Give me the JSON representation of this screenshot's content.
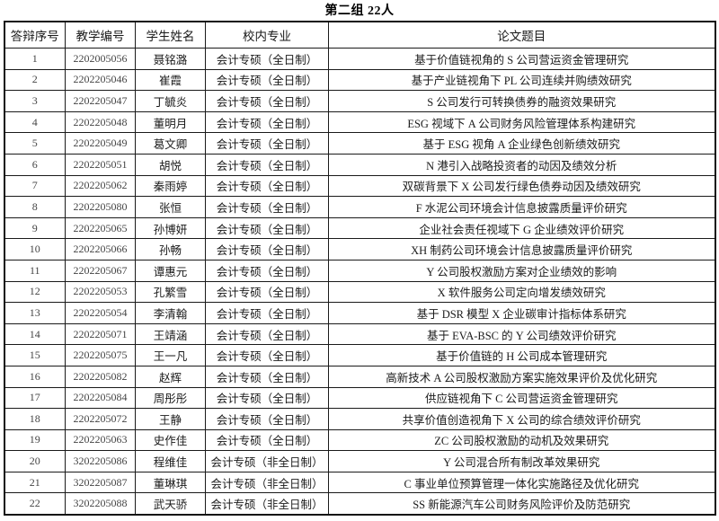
{
  "title": "第二组 22人",
  "table": {
    "headers": [
      "答辩序号",
      "教学编号",
      "学生姓名",
      "校内专业",
      "论文题目"
    ],
    "rows": [
      [
        "1",
        "2202005056",
        "聂铭潞",
        "会计专硕（全日制）",
        "基于价值链视角的 S 公司营运资金管理研究"
      ],
      [
        "2",
        "2202205046",
        "崔霞",
        "会计专硕（全日制）",
        "基于产业链视角下 PL 公司连续并购绩效研究"
      ],
      [
        "3",
        "2202205047",
        "丁毓炎",
        "会计专硕（全日制）",
        "S 公司发行可转换债券的融资效果研究"
      ],
      [
        "4",
        "2202205048",
        "董明月",
        "会计专硕（全日制）",
        "ESG 视域下 A 公司财务风险管理体系构建研究"
      ],
      [
        "5",
        "2202205049",
        "葛文卿",
        "会计专硕（全日制）",
        "基于 ESG 视角 A 企业绿色创新绩效研究"
      ],
      [
        "6",
        "2202205051",
        "胡悦",
        "会计专硕（全日制）",
        "N 港引入战略投资者的动因及绩效分析"
      ],
      [
        "7",
        "2202205062",
        "秦雨婷",
        "会计专硕（全日制）",
        "双碳背景下 X 公司发行绿色债券动因及绩效研究"
      ],
      [
        "8",
        "2202205080",
        "张恒",
        "会计专硕（全日制）",
        "F 水泥公司环境会计信息披露质量评价研究"
      ],
      [
        "9",
        "2202205065",
        "孙博妍",
        "会计专硕（全日制）",
        "企业社会责任视域下 G 企业绩效评价研究"
      ],
      [
        "10",
        "2202205066",
        "孙畅",
        "会计专硕（全日制）",
        "XH 制药公司环境会计信息披露质量评价研究"
      ],
      [
        "11",
        "2202205067",
        "谭惠元",
        "会计专硕（全日制）",
        "Y 公司股权激励方案对企业绩效的影响"
      ],
      [
        "12",
        "2202205053",
        "孔繁雪",
        "会计专硕（全日制）",
        "X 软件服务公司定向增发绩效研究"
      ],
      [
        "13",
        "2202205054",
        "李清翰",
        "会计专硕（全日制）",
        "基于 DSR 模型 X 企业碳审计指标体系研究"
      ],
      [
        "14",
        "2202205071",
        "王靖涵",
        "会计专硕（全日制）",
        "基于 EVA-BSC 的 Y 公司绩效评价研究"
      ],
      [
        "15",
        "2202205075",
        "王一凡",
        "会计专硕（全日制）",
        "基于价值链的 H 公司成本管理研究"
      ],
      [
        "16",
        "2202205082",
        "赵辉",
        "会计专硕（全日制）",
        "高新技术 A 公司股权激励方案实施效果评价及优化研究"
      ],
      [
        "17",
        "2202205084",
        "周彤彤",
        "会计专硕（全日制）",
        "供应链视角下 C 公司营运资金管理研究"
      ],
      [
        "18",
        "2202205072",
        "王静",
        "会计专硕（全日制）",
        "共享价值创造视角下 X 公司的综合绩效评价研究"
      ],
      [
        "19",
        "2202205063",
        "史作佳",
        "会计专硕（全日制）",
        "ZC 公司股权激励的动机及效果研究"
      ],
      [
        "20",
        "3202205086",
        "程维佳",
        "会计专硕（非全日制）",
        "Y 公司混合所有制改革效果研究"
      ],
      [
        "21",
        "3202205087",
        "董琳琪",
        "会计专硕（非全日制）",
        "C 事业单位预算管理一体化实施路径及优化研究"
      ],
      [
        "22",
        "3202205088",
        "武天骄",
        "会计专硕（非全日制）",
        "SS 新能源汽车公司财务风险评价及防范研究"
      ]
    ]
  },
  "colors": {
    "border": "#1a1a1a",
    "text": "#1a1a1a",
    "background": "#ffffff"
  }
}
